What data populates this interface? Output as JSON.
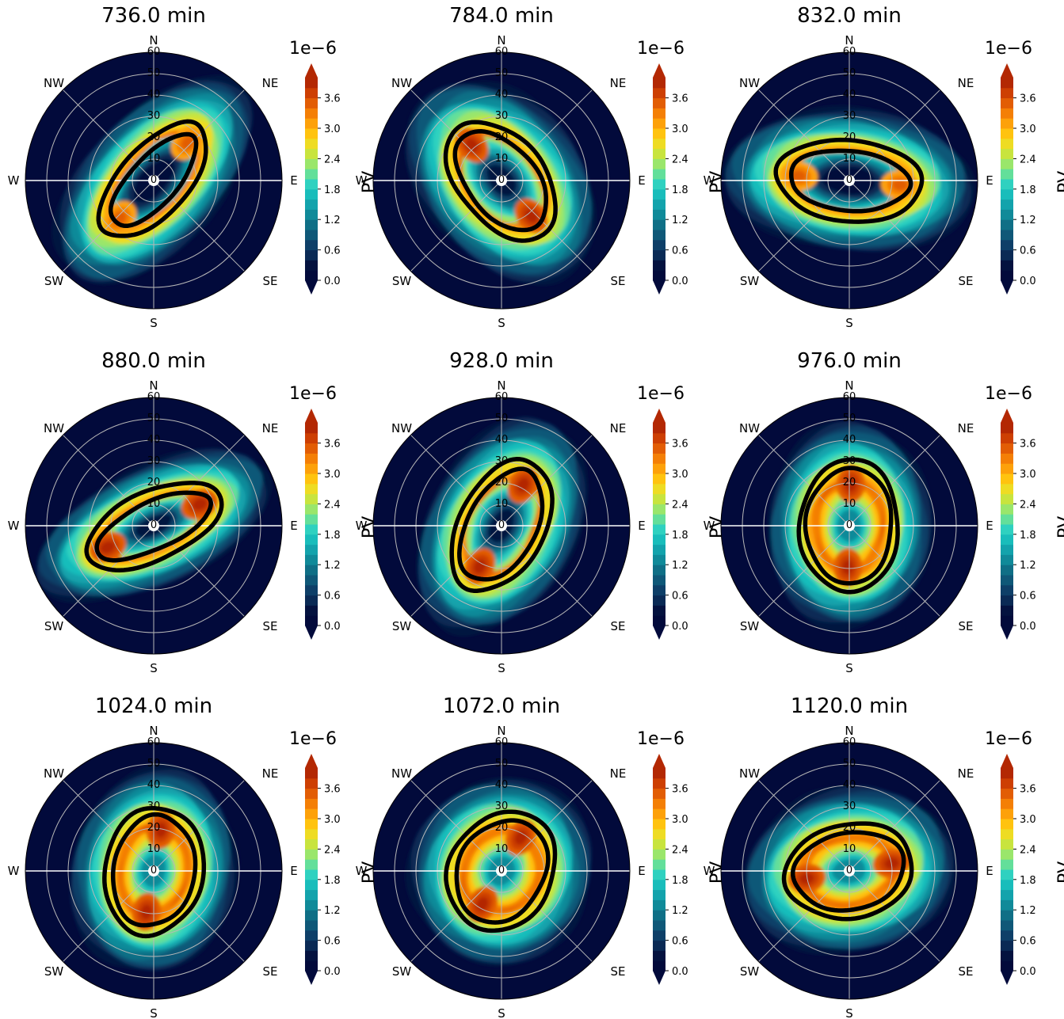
{
  "colorbar": {
    "label": "PV",
    "offset_text": "1e−6",
    "ticks": [
      "0.0",
      "0.6",
      "1.2",
      "1.8",
      "2.4",
      "3.0",
      "3.6"
    ],
    "tick_values": [
      0.0,
      0.6,
      1.2,
      1.8,
      2.4,
      3.0,
      3.6
    ],
    "levels": [
      0.0,
      0.2,
      0.4,
      0.6,
      0.8,
      1.0,
      1.2,
      1.4,
      1.6,
      1.8,
      2.0,
      2.2,
      2.4,
      2.6,
      2.8,
      3.0,
      3.2,
      3.4,
      3.6,
      3.8,
      4.0
    ],
    "colors": [
      "#020a3b",
      "#04123f",
      "#0a2a55",
      "#0e3f68",
      "#0f5878",
      "#0f6f86",
      "#108a99",
      "#13a3ac",
      "#19bdbb",
      "#2fd1c0",
      "#63df9a",
      "#9ae66b",
      "#c8e43e",
      "#eedc23",
      "#ffc30f",
      "#fda10a",
      "#f47f06",
      "#e25d05",
      "#cd3f03",
      "#b32803"
    ]
  },
  "compass": [
    "N",
    "NE",
    "E",
    "SE",
    "S",
    "SW",
    "W",
    "NW"
  ],
  "radial_ticks": [
    "0",
    "10",
    "20",
    "30",
    "40",
    "50",
    "60"
  ],
  "chart_data": [
    {
      "type": "polar contour",
      "title": "736.0 min",
      "rlim": [
        0,
        60
      ],
      "colorbar_range": [
        0.0,
        4e-06
      ],
      "pattern": "split",
      "ring": {
        "a": 33,
        "b": 16,
        "rot": 48
      },
      "contours": [
        {
          "a": 33,
          "b": 16,
          "rot": 48
        },
        {
          "a": 27,
          "b": 11,
          "rot": 48
        }
      ]
    },
    {
      "type": "polar contour",
      "title": "784.0 min",
      "rlim": [
        0,
        60
      ],
      "colorbar_range": [
        0.0,
        4e-06
      ],
      "pattern": "ring",
      "ring": {
        "a": 30,
        "b": 19,
        "rot": -50
      },
      "contours": [
        {
          "a": 32,
          "b": 20,
          "rot": -50
        },
        {
          "a": 27,
          "b": 16,
          "rot": -50
        }
      ]
    },
    {
      "type": "polar contour",
      "title": "832.0 min",
      "rlim": [
        0,
        60
      ],
      "colorbar_range": [
        0.0,
        4e-06
      ],
      "pattern": "split",
      "ring": {
        "a": 33,
        "b": 17,
        "rot": -5
      },
      "contours": [
        {
          "a": 34,
          "b": 19,
          "rot": -5
        },
        {
          "a": 28,
          "b": 14,
          "rot": -5
        }
      ]
    },
    {
      "type": "polar contour",
      "title": "880.0 min",
      "rlim": [
        0,
        60
      ],
      "colorbar_range": [
        0.0,
        4e-06
      ],
      "pattern": "ring",
      "ring": {
        "a": 33,
        "b": 14,
        "rot": 25
      },
      "contours": [
        {
          "a": 34,
          "b": 16,
          "rot": 25
        },
        {
          "a": 29,
          "b": 11,
          "rot": 25
        }
      ]
    },
    {
      "type": "polar contour",
      "title": "928.0 min",
      "rlim": [
        0,
        60
      ],
      "colorbar_range": [
        0.0,
        4e-06
      ],
      "pattern": "ring",
      "ring": {
        "a": 30,
        "b": 18,
        "rot": 62
      },
      "contours": [
        {
          "a": 33,
          "b": 20,
          "rot": 62
        },
        {
          "a": 28,
          "b": 16,
          "rot": 62
        }
      ]
    },
    {
      "type": "polar contour",
      "title": "976.0 min",
      "rlim": [
        0,
        60
      ],
      "colorbar_range": [
        0.0,
        4e-06
      ],
      "pattern": "full",
      "ring": {
        "a": 27,
        "b": 20,
        "rot": 88
      },
      "contours": [
        {
          "a": 31,
          "b": 23,
          "rot": 88
        },
        {
          "a": 27,
          "b": 20,
          "rot": 88
        }
      ]
    },
    {
      "type": "polar contour",
      "title": "1024.0 min",
      "rlim": [
        0,
        60
      ],
      "colorbar_range": [
        0.0,
        4e-06
      ],
      "pattern": "full",
      "ring": {
        "a": 27,
        "b": 20,
        "rot": 80
      },
      "contours": [
        {
          "a": 30,
          "b": 23,
          "rot": 80
        },
        {
          "a": 26,
          "b": 19,
          "rot": 80
        }
      ]
    },
    {
      "type": "polar contour",
      "title": "1072.0 min",
      "rlim": [
        0,
        60
      ],
      "colorbar_range": [
        0.0,
        4e-06
      ],
      "pattern": "full",
      "ring": {
        "a": 25,
        "b": 22,
        "rot": 60
      },
      "contours": [
        {
          "a": 29,
          "b": 24,
          "rot": 60
        },
        {
          "a": 25,
          "b": 20,
          "rot": 60
        }
      ]
    },
    {
      "type": "polar contour",
      "title": "1120.0 min",
      "rlim": [
        0,
        60
      ],
      "colorbar_range": [
        0.0,
        4e-06
      ],
      "pattern": "full",
      "ring": {
        "a": 28,
        "b": 20,
        "rot": 10
      },
      "contours": [
        {
          "a": 30,
          "b": 22,
          "rot": 10
        },
        {
          "a": 26,
          "b": 18,
          "rot": 10
        }
      ]
    }
  ]
}
